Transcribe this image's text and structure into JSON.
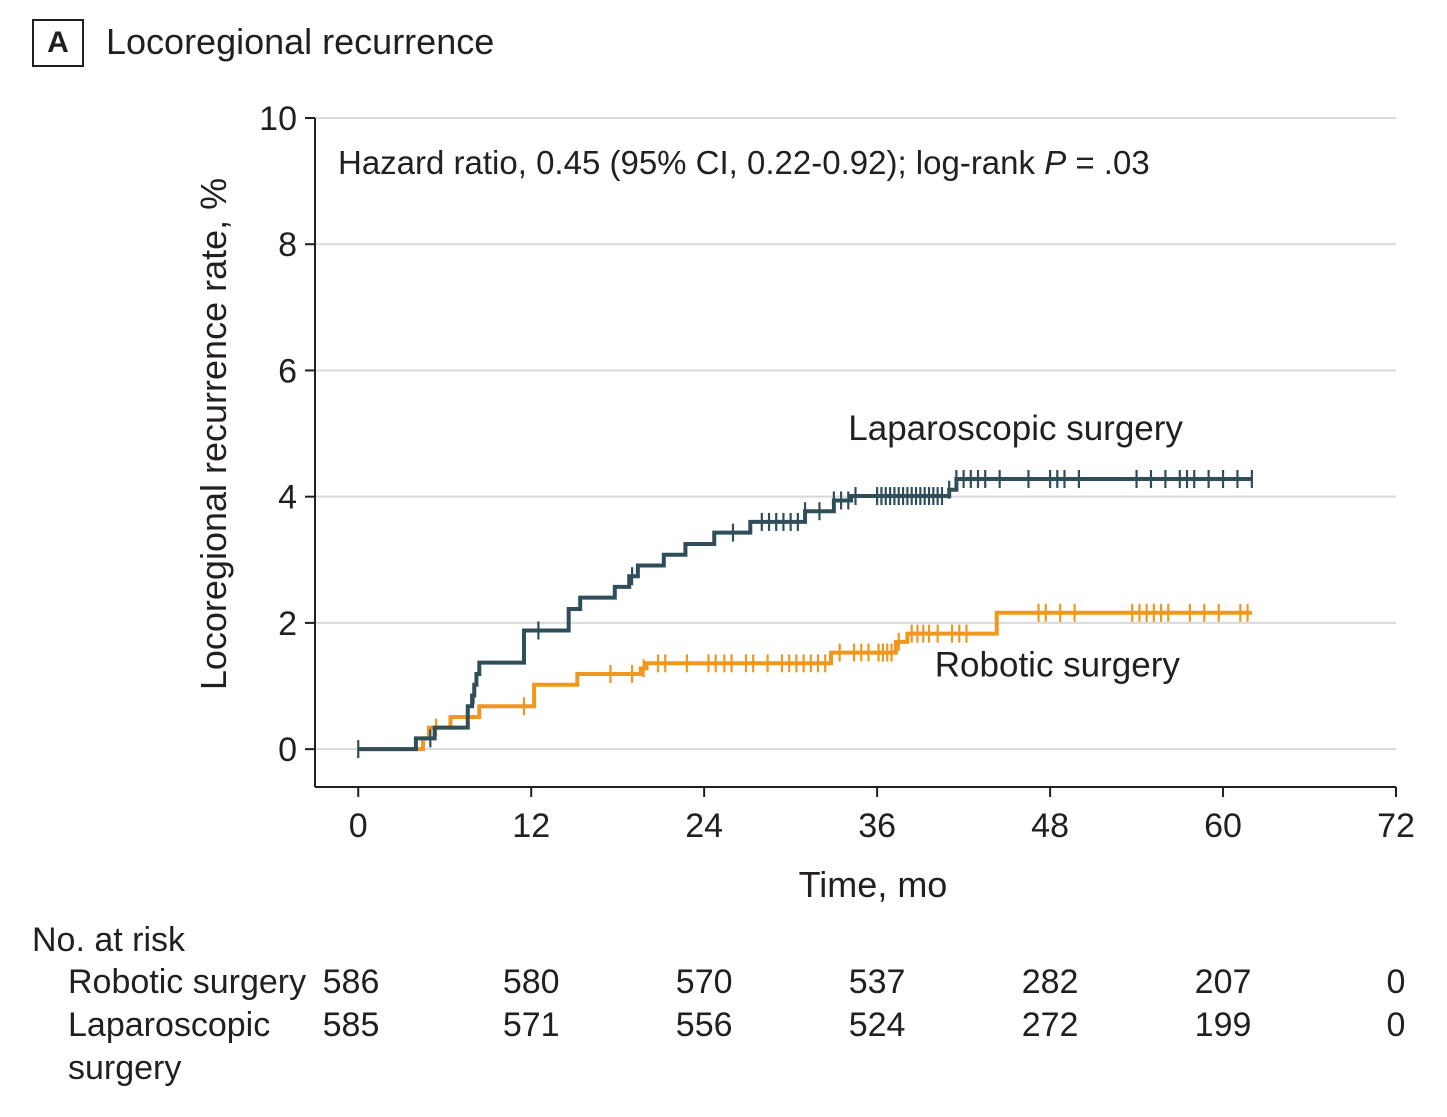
{
  "panel": {
    "label": "A",
    "title": "Locoregional recurrence"
  },
  "colors": {
    "laparoscopic": "#2f4e5a",
    "robotic": "#f0971f",
    "grid": "#d9d9d9",
    "axis": "#231f20"
  },
  "chart_data": {
    "type": "line",
    "step": true,
    "xlabel": "Time, mo",
    "ylabel": "Locoregional recurrence rate, %",
    "xlim": [
      -3,
      72
    ],
    "ylim": [
      -0.6,
      10
    ],
    "xticks": [
      0,
      12,
      24,
      36,
      48,
      60,
      72
    ],
    "yticks": [
      0,
      2,
      4,
      6,
      8,
      10
    ],
    "grid": "horizontal",
    "annotation": {
      "prefix": "Hazard ratio, 0.45 (95% CI, 0.22-0.92); log-rank ",
      "p_symbol": "P",
      "suffix": " = .03"
    },
    "series": [
      {
        "name": "Laparoscopic surgery",
        "label_pos": [
          34,
          4.9
        ],
        "x": [
          0,
          4,
          4.4,
          5.3,
          7.6,
          7.9,
          8.05,
          8.2,
          8.4,
          11.5,
          11.9,
          14.6,
          15.4,
          17.8,
          18.8,
          19.4,
          19.8,
          21.2,
          22.7,
          24.7,
          27.2,
          31,
          31.7,
          33,
          34.2,
          41,
          41.5,
          62
        ],
        "y": [
          0,
          0.17,
          0.17,
          0.34,
          0.68,
          0.85,
          1.02,
          1.19,
          1.37,
          1.88,
          1.88,
          2.22,
          2.4,
          2.57,
          2.74,
          2.91,
          2.91,
          3.08,
          3.25,
          3.43,
          3.6,
          3.77,
          3.77,
          3.94,
          4.01,
          4.11,
          4.28,
          4.28
        ],
        "censor_x": [
          0,
          5,
          8,
          12.5,
          19,
          26,
          28,
          28.5,
          29,
          29.5,
          30,
          30.5,
          31,
          32,
          33,
          33.5,
          34,
          34.5,
          36,
          36.3,
          36.6,
          36.9,
          37.2,
          37.5,
          37.8,
          38.1,
          38.4,
          38.7,
          39,
          39.3,
          39.6,
          39.9,
          40.2,
          40.5,
          41,
          41.5,
          42,
          42.5,
          43,
          43.5,
          44.5,
          46.5,
          48,
          48.5,
          49,
          50,
          54,
          55,
          56,
          57,
          57.5,
          58,
          59,
          60,
          61,
          62
        ]
      },
      {
        "name": "Robotic surgery",
        "label_pos": [
          40,
          1.15
        ],
        "x": [
          0,
          4.5,
          4.9,
          6.4,
          8.4,
          12.2,
          15.2,
          19.6,
          20,
          20.4,
          32.8,
          33.3,
          37.3,
          38.1,
          44.3,
          62
        ],
        "y": [
          0,
          0.17,
          0.34,
          0.51,
          0.68,
          1.02,
          1.19,
          1.28,
          1.36,
          1.36,
          1.53,
          1.53,
          1.7,
          1.83,
          2.16,
          2.16
        ],
        "censor_x": [
          5.4,
          11.5,
          17.5,
          19,
          19.8,
          20.8,
          21.3,
          22.8,
          24.3,
          24.8,
          25.4,
          25.9,
          26.9,
          27.4,
          28.4,
          29.4,
          29.9,
          30.4,
          30.9,
          31.4,
          31.9,
          32.4,
          33.4,
          34.4,
          34.9,
          35.4,
          36.1,
          36.4,
          36.7,
          37,
          37.5,
          38.4,
          38.8,
          39.2,
          39.6,
          40.2,
          41.2,
          41.7,
          42.2,
          47.2,
          47.7,
          48.7,
          49.7,
          53.7,
          54.2,
          54.7,
          55.2,
          55.7,
          56.2,
          57.7,
          58.7,
          59.7,
          61.2,
          61.7
        ]
      }
    ]
  },
  "risk_table": {
    "title": "No. at risk",
    "times": [
      0,
      12,
      24,
      36,
      48,
      60,
      72
    ],
    "rows": [
      {
        "label_lines": [
          "Robotic surgery"
        ],
        "counts": [
          "586",
          "580",
          "570",
          "537",
          "282",
          "207",
          "0"
        ]
      },
      {
        "label_lines": [
          "Laparoscopic",
          "surgery"
        ],
        "counts": [
          "585",
          "571",
          "556",
          "524",
          "272",
          "199",
          "0"
        ]
      }
    ]
  }
}
